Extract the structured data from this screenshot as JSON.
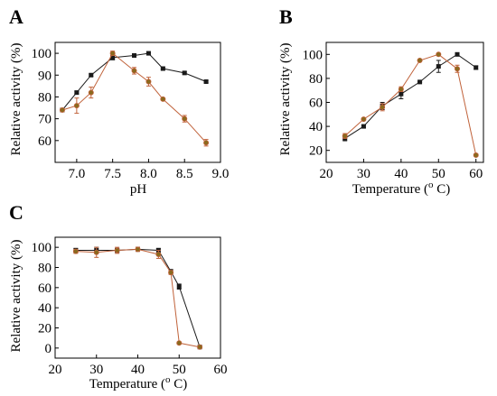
{
  "colors": {
    "black_series": "#1a1a1a",
    "orange_series": "#c0623a",
    "orange_marker": "#8a6a1e"
  },
  "chart_data": [
    {
      "id": "A",
      "panel_label": "A",
      "type": "line",
      "xlabel": "pH",
      "ylabel": "Relative activity (%)",
      "xlim": [
        6.7,
        9.0
      ],
      "ylim": [
        50,
        105
      ],
      "xticks": [
        7.0,
        7.5,
        8.0,
        8.5,
        9.0
      ],
      "xtick_labels": [
        "7.0",
        "7.5",
        "8.0",
        "8.5",
        "9.0"
      ],
      "yticks": [
        60,
        70,
        80,
        90,
        100
      ],
      "ytick_labels": [
        "60",
        "70",
        "80",
        "90",
        "100"
      ],
      "series": [
        {
          "color": "#1a1a1a",
          "marker": "square",
          "x": [
            6.8,
            7.0,
            7.2,
            7.5,
            7.8,
            8.0,
            8.2,
            8.5,
            8.8
          ],
          "y": [
            74,
            82,
            90,
            98,
            99,
            100,
            93,
            91,
            87
          ],
          "err": [
            0.6,
            0.6,
            0.5,
            1.0,
            0.5,
            0.4,
            0.5,
            0.5,
            0.5
          ]
        },
        {
          "color": "#c0623a",
          "marker": "circle",
          "x": [
            6.8,
            7.0,
            7.2,
            7.5,
            7.8,
            8.0,
            8.2,
            8.5,
            8.8
          ],
          "y": [
            74,
            76,
            82,
            100,
            92,
            87,
            79,
            70,
            59
          ],
          "err": [
            0.6,
            3.5,
            2.5,
            1.0,
            1.5,
            2.0,
            0.5,
            1.5,
            1.5
          ]
        }
      ]
    },
    {
      "id": "B",
      "panel_label": "B",
      "type": "line",
      "xlabel": "Temperature (",
      "xlabel_sup": "o",
      "xlabel_tail": " C)",
      "ylabel": "Relative activity (%)",
      "xlim": [
        20,
        62
      ],
      "ylim": [
        10,
        110
      ],
      "xticks": [
        20,
        30,
        40,
        50,
        60
      ],
      "xtick_labels": [
        "20",
        "30",
        "40",
        "50",
        "60"
      ],
      "yticks": [
        20,
        40,
        60,
        80,
        100
      ],
      "ytick_labels": [
        "20",
        "40",
        "60",
        "80",
        "100"
      ],
      "series": [
        {
          "color": "#1a1a1a",
          "marker": "square",
          "x": [
            25,
            30,
            35,
            40,
            45,
            50,
            55,
            60
          ],
          "y": [
            30,
            40,
            57,
            67,
            77,
            90,
            100,
            89
          ],
          "err": [
            2.0,
            1.0,
            3.0,
            4.0,
            0.5,
            5.0,
            0.5,
            1.5
          ]
        },
        {
          "color": "#c0623a",
          "marker": "circle",
          "x": [
            25,
            30,
            35,
            40,
            45,
            50,
            55,
            60
          ],
          "y": [
            32,
            46,
            56,
            71,
            95,
            100,
            88,
            16
          ],
          "err": [
            2.0,
            1.0,
            3.0,
            2.0,
            0.5,
            0.5,
            3.0,
            1.0
          ]
        }
      ]
    },
    {
      "id": "C",
      "panel_label": "C",
      "type": "line",
      "xlabel": "Temperature (",
      "xlabel_sup": "o",
      "xlabel_tail": " C)",
      "ylabel": "Relative activity (%)",
      "xlim": [
        20,
        60
      ],
      "ylim": [
        -10,
        110
      ],
      "xticks": [
        20,
        30,
        40,
        50,
        60
      ],
      "xtick_labels": [
        "20",
        "30",
        "40",
        "50",
        "60"
      ],
      "yticks": [
        0,
        20,
        40,
        60,
        80,
        100
      ],
      "ytick_labels": [
        "0",
        "20",
        "40",
        "60",
        "80",
        "100"
      ],
      "series": [
        {
          "color": "#1a1a1a",
          "marker": "square",
          "x": [
            25,
            30,
            35,
            40,
            45,
            48,
            50,
            55
          ],
          "y": [
            97,
            97,
            97,
            98,
            97,
            76,
            61,
            1
          ],
          "err": [
            2.0,
            3.0,
            2.0,
            2.0,
            2.0,
            2.0,
            2.5,
            0.5
          ]
        },
        {
          "color": "#c0623a",
          "marker": "circle",
          "x": [
            25,
            30,
            35,
            40,
            45,
            48,
            50,
            55
          ],
          "y": [
            96,
            95,
            97,
            98,
            93,
            75,
            5,
            1
          ],
          "err": [
            2.0,
            5.0,
            3.0,
            2.0,
            4.0,
            2.0,
            1.0,
            0.5
          ]
        }
      ]
    }
  ]
}
